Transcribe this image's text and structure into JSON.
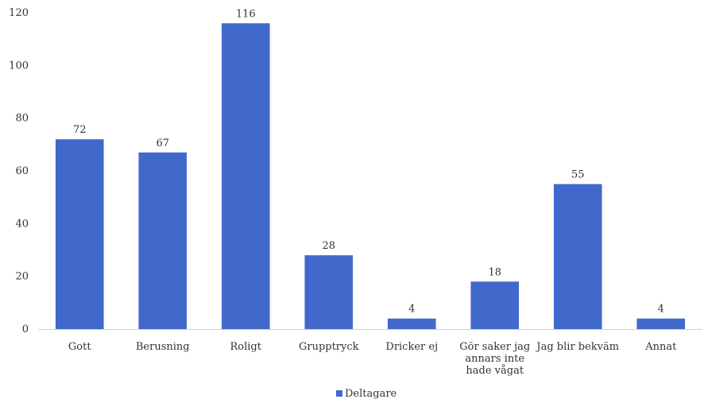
{
  "chart_data": {
    "type": "bar",
    "categories": [
      [
        "Gott"
      ],
      [
        "Berusning"
      ],
      [
        "Roligt"
      ],
      [
        "Grupptryck"
      ],
      [
        "Dricker ej"
      ],
      [
        "Gör saker jag",
        "annars inte",
        "hade vågat"
      ],
      [
        "Jag blir bekväm"
      ],
      [
        "Annat"
      ]
    ],
    "series": [
      {
        "name": "Deltagare",
        "values": [
          72,
          67,
          116,
          28,
          4,
          18,
          55,
          4
        ]
      }
    ],
    "ylim": [
      0,
      120
    ],
    "yticks": [
      0,
      20,
      40,
      60,
      80,
      100,
      120
    ],
    "grid": false,
    "legend": "bottom",
    "colors": {
      "bar": "#4169cc",
      "axis": "#d0d0d0"
    }
  }
}
